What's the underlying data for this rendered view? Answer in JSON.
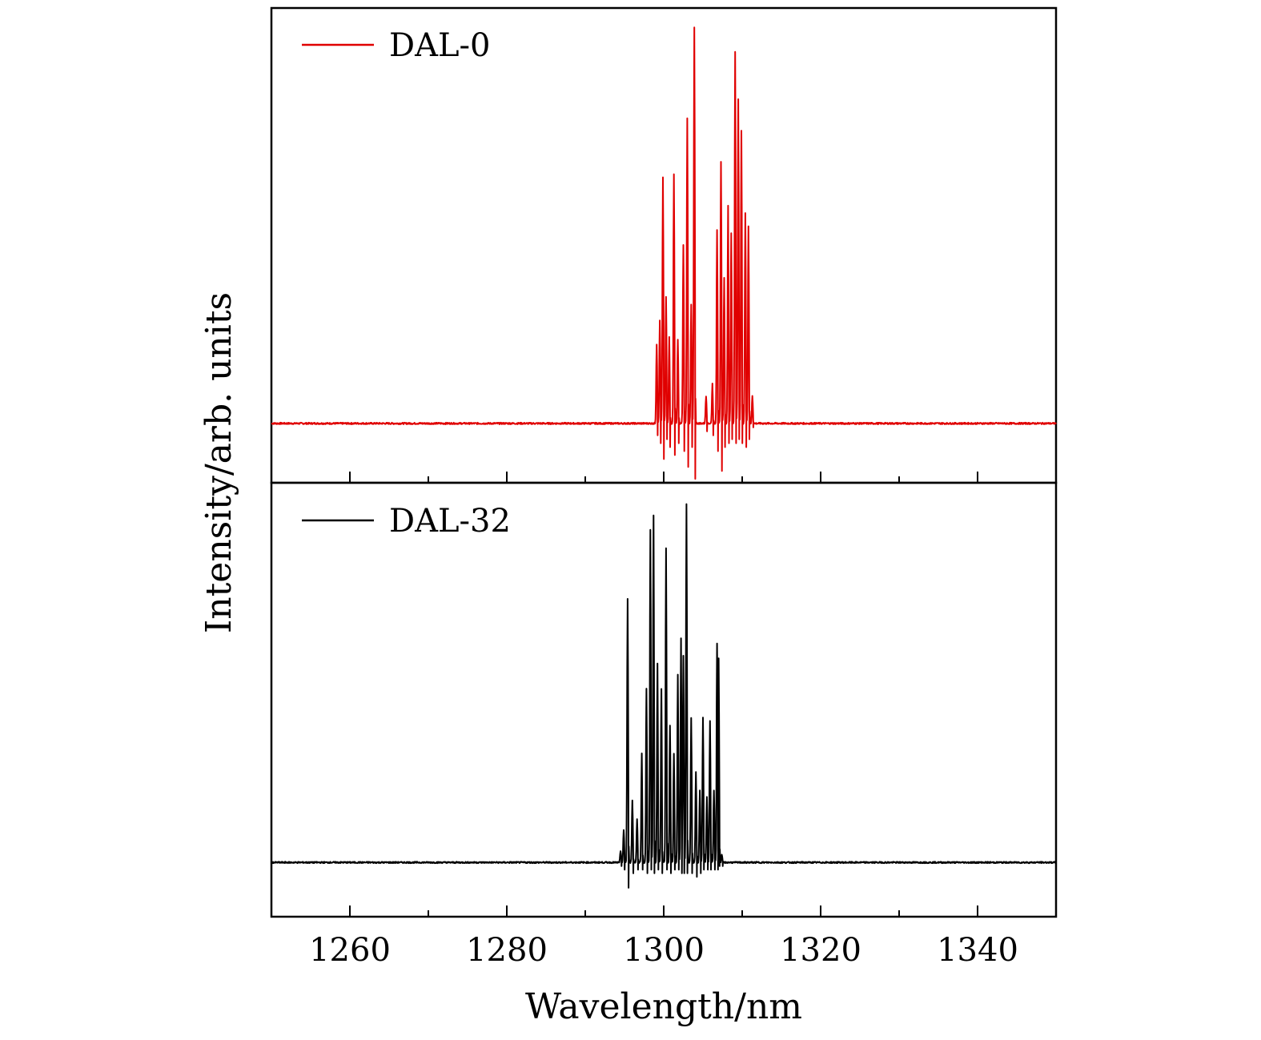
{
  "figure": {
    "xlabel": "Wavelength/nm",
    "ylabel": "Intensity/arb. units"
  },
  "chart_data": [
    {
      "type": "line",
      "panel": "top",
      "title": "",
      "xlabel": "Wavelength/nm",
      "ylabel": "Intensity/arb. units",
      "xlim": [
        1250,
        1350
      ],
      "ylim": [
        -0.15,
        1.05
      ],
      "xticks": [
        1260,
        1280,
        1300,
        1320,
        1340
      ],
      "grid": false,
      "legend": "top-left",
      "series": [
        {
          "name": "DAL-0",
          "color": "#e00000",
          "baseline": 0.0,
          "peaks": [
            {
              "x": 1299.1,
              "y": 0.2,
              "dip": -0.03
            },
            {
              "x": 1299.5,
              "y": 0.26,
              "dip": -0.05
            },
            {
              "x": 1299.9,
              "y": 0.62,
              "dip": -0.09
            },
            {
              "x": 1300.3,
              "y": 0.32,
              "dip": -0.04
            },
            {
              "x": 1300.7,
              "y": 0.22,
              "dip": -0.06
            },
            {
              "x": 1301.3,
              "y": 0.63,
              "dip": -0.08
            },
            {
              "x": 1301.8,
              "y": 0.21,
              "dip": -0.05
            },
            {
              "x": 1302.5,
              "y": 0.45,
              "dip": -0.07
            },
            {
              "x": 1303.0,
              "y": 0.77,
              "dip": -0.11
            },
            {
              "x": 1303.5,
              "y": 0.3,
              "dip": -0.06
            },
            {
              "x": 1303.9,
              "y": 1.0,
              "dip": -0.14
            },
            {
              "x": 1305.4,
              "y": 0.07,
              "dip": -0.02
            },
            {
              "x": 1306.2,
              "y": 0.1,
              "dip": -0.03
            },
            {
              "x": 1306.8,
              "y": 0.49,
              "dip": -0.07
            },
            {
              "x": 1307.3,
              "y": 0.66,
              "dip": -0.12
            },
            {
              "x": 1307.7,
              "y": 0.37,
              "dip": -0.06
            },
            {
              "x": 1308.2,
              "y": 0.55,
              "dip": -0.05
            },
            {
              "x": 1308.6,
              "y": 0.48,
              "dip": -0.04
            },
            {
              "x": 1309.1,
              "y": 0.94,
              "dip": -0.05
            },
            {
              "x": 1309.5,
              "y": 0.82,
              "dip": -0.04
            },
            {
              "x": 1309.9,
              "y": 0.74,
              "dip": -0.05
            },
            {
              "x": 1310.4,
              "y": 0.53,
              "dip": -0.06
            },
            {
              "x": 1310.8,
              "y": 0.5,
              "dip": -0.04
            },
            {
              "x": 1311.3,
              "y": 0.07,
              "dip": -0.01
            }
          ]
        }
      ]
    },
    {
      "type": "line",
      "panel": "bottom",
      "title": "",
      "xlabel": "Wavelength/nm",
      "ylabel": "Intensity/arb. units",
      "xlim": [
        1250,
        1350
      ],
      "ylim": [
        -0.15,
        1.05
      ],
      "xticks": [
        1260,
        1280,
        1300,
        1320,
        1340
      ],
      "grid": false,
      "legend": "top-left",
      "series": [
        {
          "name": "DAL-32",
          "color": "#000000",
          "baseline": 0.0,
          "peaks": [
            {
              "x": 1294.5,
              "y": 0.03,
              "dip": -0.01
            },
            {
              "x": 1294.9,
              "y": 0.09,
              "dip": -0.02
            },
            {
              "x": 1295.4,
              "y": 0.73,
              "dip": -0.07
            },
            {
              "x": 1296.0,
              "y": 0.17,
              "dip": -0.03
            },
            {
              "x": 1296.6,
              "y": 0.12,
              "dip": -0.02
            },
            {
              "x": 1297.2,
              "y": 0.3,
              "dip": -0.02
            },
            {
              "x": 1297.8,
              "y": 0.48,
              "dip": -0.03
            },
            {
              "x": 1298.3,
              "y": 0.92,
              "dip": -0.02
            },
            {
              "x": 1298.7,
              "y": 0.96,
              "dip": -0.03
            },
            {
              "x": 1299.2,
              "y": 0.55,
              "dip": -0.02
            },
            {
              "x": 1299.7,
              "y": 0.48,
              "dip": -0.03
            },
            {
              "x": 1300.3,
              "y": 0.87,
              "dip": -0.02
            },
            {
              "x": 1300.8,
              "y": 0.38,
              "dip": -0.03
            },
            {
              "x": 1301.3,
              "y": 0.3,
              "dip": -0.02
            },
            {
              "x": 1301.8,
              "y": 0.52,
              "dip": -0.02
            },
            {
              "x": 1302.2,
              "y": 0.62,
              "dip": -0.03
            },
            {
              "x": 1302.5,
              "y": 0.57,
              "dip": -0.03
            },
            {
              "x": 1302.9,
              "y": 0.99,
              "dip": -0.03
            },
            {
              "x": 1303.5,
              "y": 0.4,
              "dip": -0.03
            },
            {
              "x": 1304.1,
              "y": 0.25,
              "dip": -0.04
            },
            {
              "x": 1304.6,
              "y": 0.2,
              "dip": -0.03
            },
            {
              "x": 1305.0,
              "y": 0.4,
              "dip": -0.02
            },
            {
              "x": 1305.5,
              "y": 0.18,
              "dip": -0.02
            },
            {
              "x": 1305.9,
              "y": 0.39,
              "dip": -0.02
            },
            {
              "x": 1306.4,
              "y": 0.2,
              "dip": -0.02
            },
            {
              "x": 1306.8,
              "y": 0.6,
              "dip": -0.02
            },
            {
              "x": 1307.0,
              "y": 0.56,
              "dip": -0.01
            },
            {
              "x": 1307.4,
              "y": 0.02,
              "dip": -0.01
            }
          ]
        }
      ]
    }
  ]
}
